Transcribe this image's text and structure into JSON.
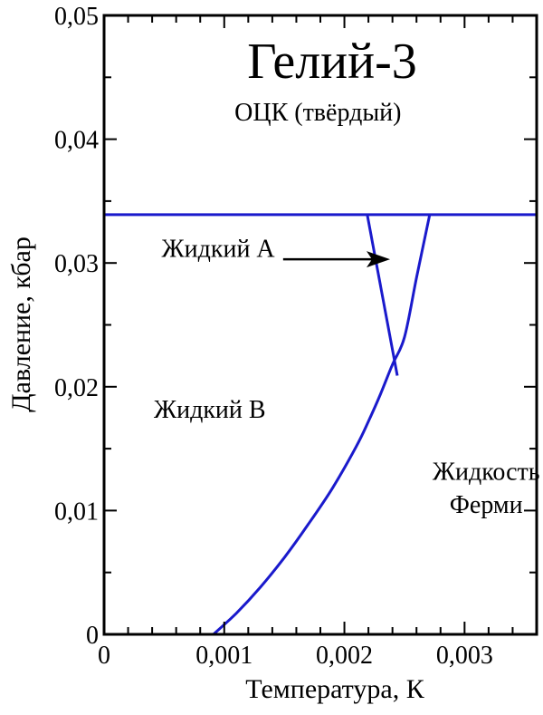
{
  "chart_data": {
    "type": "line",
    "title": "Гелий-3",
    "xlabel": "Температура, К",
    "ylabel": "Давление, кбар",
    "xlim": [
      0,
      0.0036
    ],
    "ylim": [
      0,
      0.05
    ],
    "grid": false,
    "x_ticks": [
      {
        "value": 0,
        "label": "0"
      },
      {
        "value": 0.001,
        "label": "0,001"
      },
      {
        "value": 0.002,
        "label": "0,002"
      },
      {
        "value": 0.003,
        "label": "0,003"
      }
    ],
    "y_ticks": [
      {
        "value": 0,
        "label": "0"
      },
      {
        "value": 0.01,
        "label": "0,01"
      },
      {
        "value": 0.02,
        "label": "0,02"
      },
      {
        "value": 0.03,
        "label": "0,03"
      },
      {
        "value": 0.04,
        "label": "0,04"
      },
      {
        "value": 0.05,
        "label": "0,05"
      }
    ],
    "line_color": "#1a1acc",
    "series": [
      {
        "id": "solidification",
        "x": [
          0,
          0.0036
        ],
        "y": [
          0.0339,
          0.0339
        ]
      },
      {
        "id": "fermi-boundary",
        "x": [
          0.00091,
          0.0011,
          0.0013,
          0.0015,
          0.0017,
          0.0019,
          0.0021,
          0.0022,
          0.0023,
          0.0024,
          0.00244,
          0.0025,
          0.0026,
          0.00271
        ],
        "y": [
          0.0,
          0.0017,
          0.0038,
          0.0062,
          0.0089,
          0.0118,
          0.0152,
          0.0172,
          0.0194,
          0.0218,
          0.0209,
          0.024,
          0.0288,
          0.0339
        ]
      },
      {
        "id": "a-b-boundary",
        "x": [
          0.00219,
          0.00244
        ],
        "y": [
          0.0339,
          0.0209
        ]
      }
    ],
    "annotations": [
      {
        "id": "solid",
        "text": "ОЦК (твёрдый)",
        "x": 0.00178,
        "y": 0.0415
      },
      {
        "id": "liquid-a",
        "text": "Жидкий A",
        "x": 0.00095,
        "y": 0.0305
      },
      {
        "id": "liquid-b",
        "text": "Жидкий B",
        "x": 0.00088,
        "y": 0.0175
      },
      {
        "id": "fermi-1",
        "text": "Жидкость",
        "x": 0.00318,
        "y": 0.0125
      },
      {
        "id": "fermi-2",
        "text": "Ферми",
        "x": 0.00318,
        "y": 0.0098
      }
    ],
    "arrow": {
      "from": [
        0.00149,
        0.0303
      ],
      "to": [
        0.00238,
        0.0303
      ]
    }
  }
}
